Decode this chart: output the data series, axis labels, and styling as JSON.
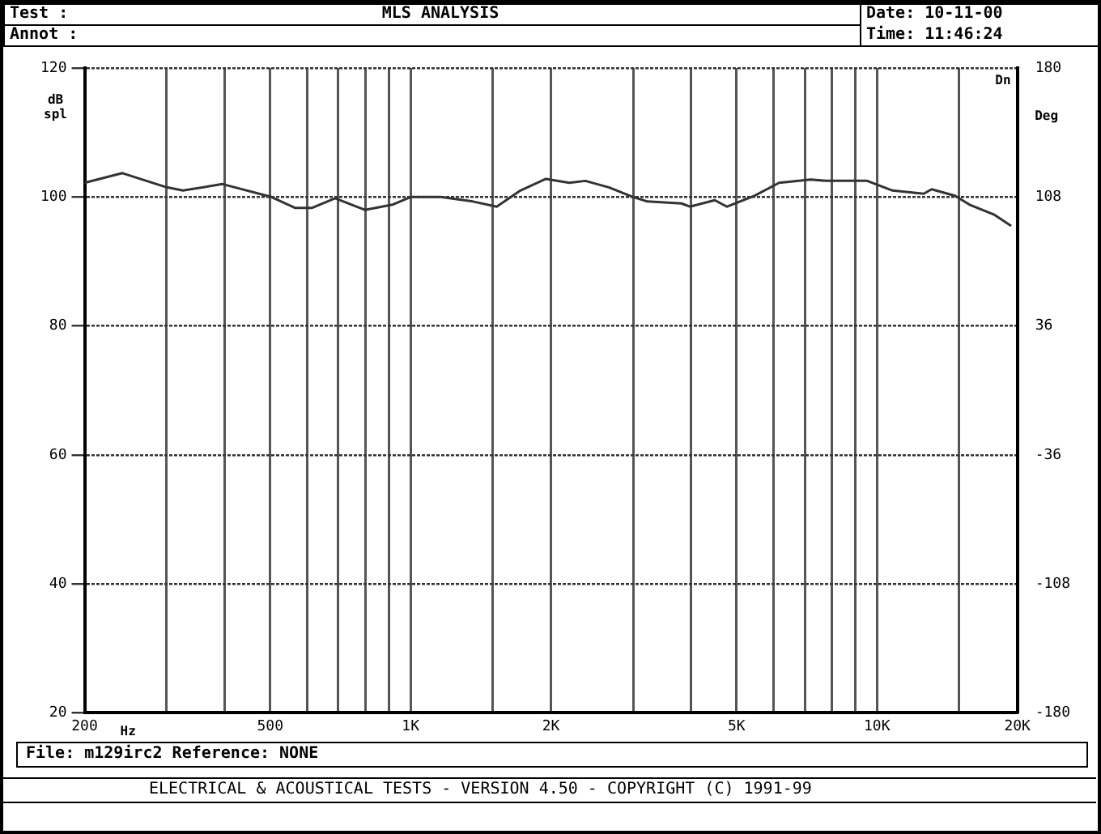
{
  "chart_data": {
    "type": "line",
    "title": "MLS ANALYSIS",
    "xlabel": "Hz",
    "ylabel": "dB spl",
    "y2label": "Deg",
    "annotations": [
      "Test :",
      "Annot :",
      "Date: 10-11-00",
      "Time: 11:46:24",
      "File: m129irc2 Reference: NONE",
      "ELECTRICAL & ACOUSTICAL TESTS - VERSION 4.50 - COPYRIGHT (C) 1991-99",
      "Dn"
    ],
    "x": [
      200,
      241,
      300,
      325,
      395,
      503,
      566,
      614,
      689,
      798,
      914,
      1000,
      1160,
      1360,
      1530,
      1720,
      1950,
      2190,
      2370,
      2660,
      3000,
      3220,
      3810,
      3970,
      4490,
      4770,
      5470,
      6170,
      7210,
      7800,
      9530,
      10800,
      12600,
      13100,
      14700,
      15800,
      17800,
      19400
    ],
    "series": [
      {
        "color": "#333333",
        "values": [
          102.2,
          103.7,
          101.5,
          101,
          102,
          100,
          98.3,
          98.3,
          99.8,
          98,
          98.8,
          100,
          100,
          99.3,
          98.5,
          101,
          102.8,
          102.2,
          102.5,
          101.5,
          100,
          99.3,
          99,
          98.5,
          99.5,
          98.5,
          100.2,
          102.2,
          102.7,
          102.5,
          102.5,
          101,
          100.5,
          101.2,
          100.2,
          98.8,
          97.3,
          95.5
        ]
      }
    ],
    "log": "x",
    "xlim": [
      200,
      20000
    ],
    "xticks": [
      200,
      {
        "value": 300,
        "label": null
      },
      {
        "value": 400,
        "label": null
      },
      500,
      {
        "value": 600,
        "label": null
      },
      {
        "value": 700,
        "label": null
      },
      {
        "value": 800,
        "label": null
      },
      {
        "value": 900,
        "label": null
      },
      {
        "value": 1000,
        "label": "1K"
      },
      {
        "value": 1500,
        "label": null
      },
      {
        "value": 2000,
        "label": "2K"
      },
      {
        "value": 3000,
        "label": null
      },
      {
        "value": 4000,
        "label": null
      },
      {
        "value": 5000,
        "label": "5K"
      },
      {
        "value": 6000,
        "label": null
      },
      {
        "value": 7000,
        "label": null
      },
      {
        "value": 8000,
        "label": null
      },
      {
        "value": 9000,
        "label": null
      },
      {
        "value": 10000,
        "label": "10K"
      },
      {
        "value": 15000,
        "label": null
      },
      {
        "value": 20000,
        "label": "20K"
      }
    ],
    "ylim": [
      20,
      120
    ],
    "yticks": [
      20,
      40,
      60,
      80,
      100,
      120
    ],
    "y2lim": [
      -180,
      180
    ],
    "y2ticks": [
      -180,
      -108,
      -36,
      36,
      108,
      180
    ],
    "grid": true,
    "legend": false,
    "marker": "none",
    "line_style": "solid"
  }
}
